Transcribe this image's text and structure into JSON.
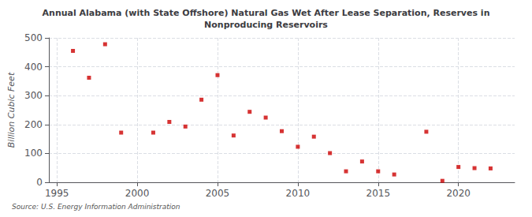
{
  "chart_data": {
    "type": "scatter",
    "title": "Annual Alabama (with State Offshore) Natural Gas Wet After Lease Separation, Reserves in\nNonproducing Reservoirs",
    "ylabel": "Billion Cubic Feet",
    "source": "Source: U.S. Energy Information Administration",
    "x": [
      1996,
      1997,
      1998,
      1999,
      2001,
      2002,
      2003,
      2004,
      2005,
      2006,
      2007,
      2008,
      2009,
      2010,
      2011,
      2012,
      2013,
      2014,
      2015,
      2016,
      2018,
      2019,
      2020,
      2021,
      2022
    ],
    "values": [
      455,
      362,
      478,
      172,
      172,
      209,
      193,
      286,
      371,
      162,
      244,
      224,
      177,
      123,
      158,
      101,
      38,
      72,
      38,
      27,
      175,
      5,
      53,
      49,
      48
    ],
    "color": "#cc0000",
    "marker": "square",
    "xlim": [
      1994.5,
      2023.5
    ],
    "xticks": [
      1995,
      2000,
      2005,
      2010,
      2015,
      2020
    ],
    "ylim": [
      0,
      500
    ],
    "yticks": [
      0,
      100,
      200,
      300,
      400,
      500
    ],
    "grid": true
  }
}
